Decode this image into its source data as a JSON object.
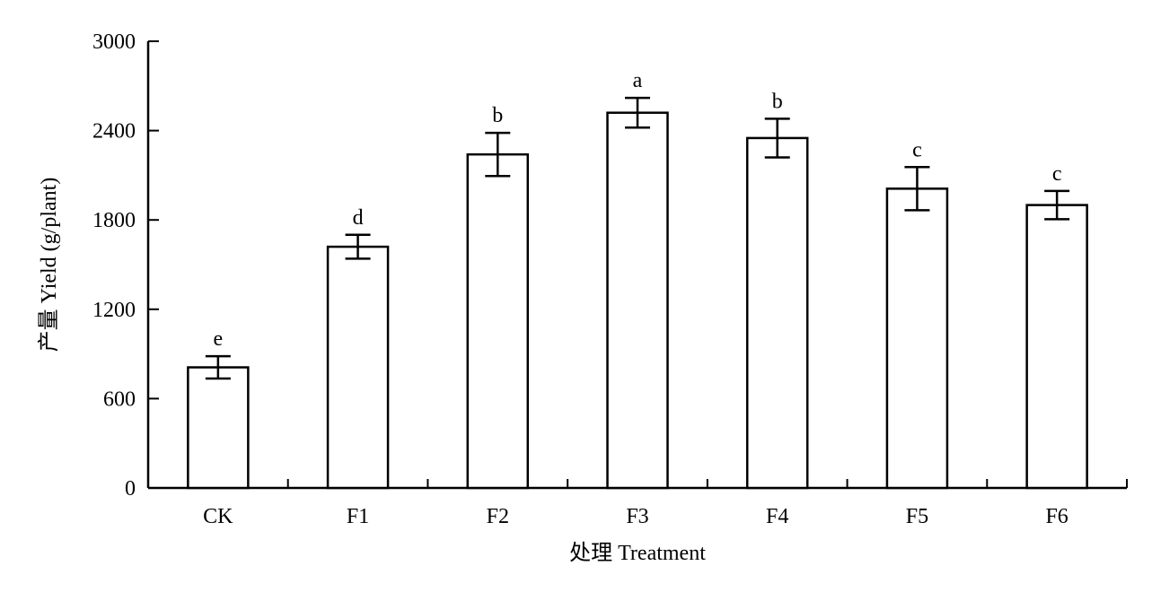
{
  "chart_data": {
    "type": "bar",
    "categories": [
      "CK",
      "F1",
      "F2",
      "F3",
      "F4",
      "F5",
      "F6"
    ],
    "values": [
      810,
      1620,
      2240,
      2520,
      2350,
      2010,
      1900
    ],
    "errors": [
      75,
      80,
      145,
      100,
      130,
      145,
      95
    ],
    "significance": [
      "e",
      "d",
      "b",
      "a",
      "b",
      "c",
      "c"
    ],
    "xlabel": "处理 Treatment",
    "ylabel": "产量 Yield (g/plant)",
    "ylim": [
      0,
      3000
    ],
    "yticks": [
      0,
      600,
      1200,
      1800,
      2400,
      3000
    ],
    "grid": false,
    "legend": "none"
  }
}
